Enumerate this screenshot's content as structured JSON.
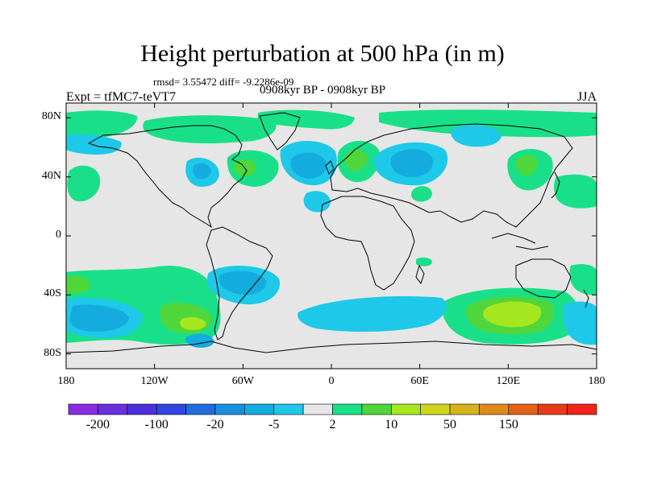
{
  "title": "Height perturbation at 500 hPa (in m)",
  "stats_text": "rmsd= 3.55472 diff= -9.2286e-09",
  "periods_text": "0908kyr BP - 0908kyr BP",
  "experiment_text": "Expt = tfMC7-teVT7",
  "season_text": "JJA",
  "latitude_ticks": [
    {
      "label": "80N",
      "value": 80
    },
    {
      "label": "40N",
      "value": 40
    },
    {
      "label": "0",
      "value": 0
    },
    {
      "label": "40S",
      "value": -40
    },
    {
      "label": "80S",
      "value": -80
    }
  ],
  "longitude_ticks": [
    {
      "label": "180",
      "value": -180
    },
    {
      "label": "120W",
      "value": -120
    },
    {
      "label": "60W",
      "value": -60
    },
    {
      "label": "0",
      "value": 0
    },
    {
      "label": "60E",
      "value": 60
    },
    {
      "label": "120E",
      "value": 120
    },
    {
      "label": "180",
      "value": 180
    }
  ],
  "colorbar": {
    "colors": [
      "#8a2be2",
      "#6a30e0",
      "#4b2fd8",
      "#2f45e0",
      "#1f6cdc",
      "#168fe0",
      "#14acde",
      "#1ec8e8",
      "#e6e6e6",
      "#19e088",
      "#4fd63a",
      "#a6e61f",
      "#d0d41e",
      "#d8b21b",
      "#de8a19",
      "#e46118",
      "#e83a16",
      "#f02418"
    ],
    "label_boundaries": [
      {
        "boundary": 1,
        "label": "-200"
      },
      {
        "boundary": 3,
        "label": "-100"
      },
      {
        "boundary": 5,
        "label": "-20"
      },
      {
        "boundary": 7,
        "label": "-5"
      },
      {
        "boundary": 9,
        "label": "2"
      },
      {
        "boundary": 11,
        "label": "10"
      },
      {
        "boundary": 13,
        "label": "50"
      },
      {
        "boundary": 15,
        "label": "150"
      }
    ]
  },
  "field_anomalies": [
    {
      "name": "north-atlantic-positive",
      "lon": -70,
      "lat": 45,
      "level": "positive"
    },
    {
      "name": "europe-positive",
      "lon": 10,
      "lat": 52,
      "level": "positive"
    },
    {
      "name": "asia-pacific-positive",
      "lon": 130,
      "lat": 45,
      "level": "positive"
    },
    {
      "name": "south-pacific-positive",
      "lon": -90,
      "lat": -60,
      "level": "strong-positive"
    },
    {
      "name": "indian-ocean-positive",
      "lon": 110,
      "lat": -55,
      "level": "strong-positive"
    },
    {
      "name": "north-atlantic-negative",
      "lon": -35,
      "lat": 48,
      "level": "negative"
    },
    {
      "name": "eurasia-negative",
      "lon": 45,
      "lat": 50,
      "level": "negative"
    },
    {
      "name": "southern-ocean-negative",
      "lon": 20,
      "lat": -60,
      "level": "negative"
    },
    {
      "name": "south-america-negative",
      "lon": -60,
      "lat": -35,
      "level": "negative"
    }
  ]
}
